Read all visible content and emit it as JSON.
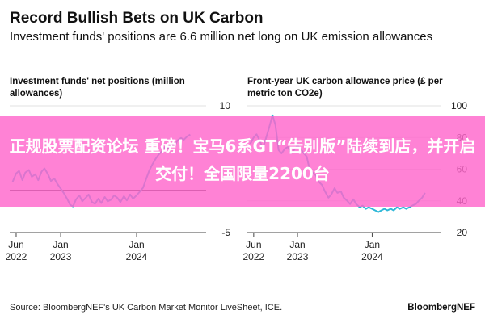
{
  "header": {
    "title": "Record Bullish Bets on UK Carbon",
    "subtitle": "Investment funds' positions are 6.6 million net long on UK emission allowances"
  },
  "banner": {
    "text": "正规股票配资论坛 重磅！宝马6系GT“告别版”陆续到店，并开启交付！全国限量2200台"
  },
  "footer": {
    "source": "Source: BloombergNEF's UK Carbon Market Monitor LiveSheet, ICE.",
    "brand": "BloombergNEF"
  },
  "colors": {
    "line": "#2fb8d8",
    "zero_line": "#222222",
    "grid": "#e2e2e2",
    "banner": "#ff66cc"
  },
  "chart_data": [
    {
      "type": "line",
      "title": "Investment funds' net positions (million allowances)",
      "x_axis": {
        "type": "date",
        "range": [
          "2022-05-01",
          "2024-11-30"
        ]
      },
      "ylim": [
        -5,
        10
      ],
      "y_ticks": [
        {
          "value": 10,
          "label": "10"
        },
        {
          "value": -5,
          "label": "-5"
        }
      ],
      "x_ticks": [
        {
          "date": "2022-06-01",
          "label": [
            "Jun",
            "2022"
          ]
        },
        {
          "date": "2023-01-01",
          "label": [
            "Jan",
            "2023"
          ]
        },
        {
          "date": "2024-01-01",
          "label": [
            "Jan",
            "2024"
          ]
        }
      ],
      "series": [
        {
          "values": [
            [
              "2022-05-15",
              1.0
            ],
            [
              "2022-06-01",
              2.0
            ],
            [
              "2022-06-15",
              2.3
            ],
            [
              "2022-07-01",
              1.2
            ],
            [
              "2022-07-15",
              2.1
            ],
            [
              "2022-08-01",
              2.4
            ],
            [
              "2022-08-15",
              1.6
            ],
            [
              "2022-09-01",
              1.9
            ],
            [
              "2022-09-15",
              1.2
            ],
            [
              "2022-10-01",
              2.2
            ],
            [
              "2022-10-15",
              2.6
            ],
            [
              "2022-11-01",
              1.9
            ],
            [
              "2022-11-15",
              1.1
            ],
            [
              "2022-12-01",
              1.4
            ],
            [
              "2022-12-15",
              0.8
            ],
            [
              "2023-01-01",
              0.2
            ],
            [
              "2023-01-15",
              -0.3
            ],
            [
              "2023-02-01",
              -1.0
            ],
            [
              "2023-02-15",
              -1.7
            ],
            [
              "2023-03-01",
              -1.9
            ],
            [
              "2023-03-15",
              -1.1
            ],
            [
              "2023-04-01",
              -0.6
            ],
            [
              "2023-04-15",
              -1.3
            ],
            [
              "2023-05-01",
              -0.9
            ],
            [
              "2023-05-15",
              -0.5
            ],
            [
              "2023-06-01",
              -1.4
            ],
            [
              "2023-06-15",
              -1.6
            ],
            [
              "2023-07-01",
              -1.0
            ],
            [
              "2023-07-15",
              -1.5
            ],
            [
              "2023-08-01",
              -0.8
            ],
            [
              "2023-08-15",
              -1.3
            ],
            [
              "2023-09-01",
              -1.1
            ],
            [
              "2023-09-15",
              -0.6
            ],
            [
              "2023-10-01",
              -0.9
            ],
            [
              "2023-10-15",
              -1.4
            ],
            [
              "2023-11-01",
              -0.7
            ],
            [
              "2023-11-15",
              -1.2
            ],
            [
              "2023-12-01",
              -0.5
            ],
            [
              "2023-12-15",
              -1.0
            ],
            [
              "2024-01-01",
              -0.6
            ],
            [
              "2024-01-15",
              -0.2
            ],
            [
              "2024-02-01",
              0.3
            ],
            [
              "2024-02-15",
              1.3
            ],
            [
              "2024-03-01",
              2.3
            ],
            [
              "2024-03-15",
              3.0
            ],
            [
              "2024-04-01",
              3.7
            ],
            [
              "2024-04-15",
              4.2
            ],
            [
              "2024-05-01",
              4.6
            ],
            [
              "2024-05-15",
              5.1
            ],
            [
              "2024-06-01",
              5.0
            ],
            [
              "2024-06-15",
              5.5
            ],
            [
              "2024-07-01",
              5.2
            ],
            [
              "2024-07-15",
              5.9
            ],
            [
              "2024-08-01",
              6.2
            ],
            [
              "2024-08-15",
              6.0
            ],
            [
              "2024-09-01",
              6.4
            ],
            [
              "2024-09-15",
              6.6
            ]
          ]
        }
      ]
    },
    {
      "type": "line",
      "title": "Front-year UK carbon allowance price (£ per metric ton CO2e)",
      "x_axis": {
        "type": "date",
        "range": [
          "2022-05-01",
          "2024-11-30"
        ]
      },
      "ylim": [
        20,
        100
      ],
      "y_ticks": [
        {
          "value": 100,
          "label": "100"
        },
        {
          "value": 80,
          "label": "80"
        },
        {
          "value": 60,
          "label": "60"
        },
        {
          "value": 40,
          "label": "40"
        },
        {
          "value": 20,
          "label": "20"
        }
      ],
      "x_ticks": [
        {
          "date": "2022-06-01",
          "label": [
            "Jun",
            "2022"
          ]
        },
        {
          "date": "2023-01-01",
          "label": [
            "Jan",
            "2023"
          ]
        },
        {
          "date": "2024-01-01",
          "label": [
            "Jan",
            "2024"
          ]
        }
      ],
      "series": [
        {
          "values": [
            [
              "2022-05-15",
              76
            ],
            [
              "2022-06-01",
              80
            ],
            [
              "2022-06-15",
              82
            ],
            [
              "2022-07-01",
              78
            ],
            [
              "2022-07-15",
              73
            ],
            [
              "2022-08-01",
              80
            ],
            [
              "2022-08-15",
              86
            ],
            [
              "2022-09-01",
              94
            ],
            [
              "2022-09-15",
              88
            ],
            [
              "2022-10-01",
              72
            ],
            [
              "2022-10-15",
              70
            ],
            [
              "2022-11-01",
              73
            ],
            [
              "2022-11-15",
              74
            ],
            [
              "2022-12-01",
              70
            ],
            [
              "2022-12-15",
              72
            ],
            [
              "2023-01-01",
              75
            ],
            [
              "2023-01-15",
              73
            ],
            [
              "2023-02-01",
              70
            ],
            [
              "2023-02-15",
              68
            ],
            [
              "2023-03-01",
              60
            ],
            [
              "2023-03-15",
              58
            ],
            [
              "2023-04-01",
              56
            ],
            [
              "2023-04-15",
              52
            ],
            [
              "2023-05-01",
              50
            ],
            [
              "2023-05-15",
              46
            ],
            [
              "2023-06-01",
              42
            ],
            [
              "2023-06-15",
              44
            ],
            [
              "2023-07-01",
              48
            ],
            [
              "2023-07-15",
              45
            ],
            [
              "2023-08-01",
              46
            ],
            [
              "2023-08-15",
              42
            ],
            [
              "2023-09-01",
              40
            ],
            [
              "2023-09-15",
              38
            ],
            [
              "2023-10-01",
              41
            ],
            [
              "2023-10-15",
              38
            ],
            [
              "2023-11-01",
              36
            ],
            [
              "2023-11-15",
              37
            ],
            [
              "2023-12-01",
              35
            ],
            [
              "2023-12-15",
              36
            ],
            [
              "2024-01-01",
              35
            ],
            [
              "2024-01-15",
              34
            ],
            [
              "2024-02-01",
              33
            ],
            [
              "2024-02-15",
              34
            ],
            [
              "2024-03-01",
              35
            ],
            [
              "2024-03-15",
              34
            ],
            [
              "2024-04-01",
              35
            ],
            [
              "2024-04-15",
              34
            ],
            [
              "2024-05-01",
              36
            ],
            [
              "2024-05-15",
              35
            ],
            [
              "2024-06-01",
              36
            ],
            [
              "2024-06-15",
              35
            ],
            [
              "2024-07-01",
              36
            ],
            [
              "2024-07-15",
              37
            ],
            [
              "2024-08-01",
              38
            ],
            [
              "2024-08-15",
              40
            ],
            [
              "2024-09-01",
              42
            ],
            [
              "2024-09-15",
              45
            ]
          ]
        }
      ]
    }
  ]
}
